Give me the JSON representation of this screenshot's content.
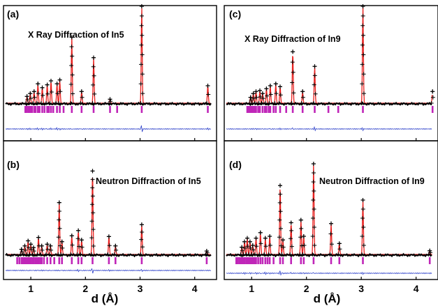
{
  "colors": {
    "observed": "#000000",
    "calculated": "#e8201e",
    "reflection_ticks": "#c026b8",
    "difference": "#2b3fc9",
    "frame": "#000000"
  },
  "chart_data": [
    {
      "type": "line",
      "panel_label": "(a)",
      "title": "X Ray Diffraction of In5",
      "xlabel": "d (Å)",
      "xlim": [
        0.5,
        4.4
      ],
      "xticks": [
        1,
        2,
        3,
        4
      ],
      "peaks": [
        {
          "d": 0.93,
          "h": 0.07
        },
        {
          "d": 0.99,
          "h": 0.1
        },
        {
          "d": 1.06,
          "h": 0.12
        },
        {
          "d": 1.13,
          "h": 0.2
        },
        {
          "d": 1.21,
          "h": 0.16
        },
        {
          "d": 1.3,
          "h": 0.19
        },
        {
          "d": 1.37,
          "h": 0.23
        },
        {
          "d": 1.48,
          "h": 0.2
        },
        {
          "d": 1.53,
          "h": 0.24
        },
        {
          "d": 1.75,
          "h": 0.68
        },
        {
          "d": 1.93,
          "h": 0.12
        },
        {
          "d": 2.15,
          "h": 0.47
        },
        {
          "d": 2.45,
          "h": 0.04
        },
        {
          "d": 3.03,
          "h": 1.0
        },
        {
          "d": 4.24,
          "h": 0.18
        }
      ],
      "reflections": [
        0.9,
        0.93,
        0.96,
        0.99,
        1.02,
        1.06,
        1.09,
        1.13,
        1.16,
        1.21,
        1.25,
        1.3,
        1.33,
        1.37,
        1.41,
        1.48,
        1.53,
        1.6,
        1.75,
        1.93,
        2.15,
        2.45,
        2.58,
        3.03,
        4.24
      ]
    },
    {
      "type": "line",
      "panel_label": "(b)",
      "title": "Neutron Diffraction of In5",
      "xlabel": "d (Å)",
      "xlim": [
        0.5,
        4.4
      ],
      "xticks": [
        1,
        2,
        3,
        4
      ],
      "peaks": [
        {
          "d": 0.83,
          "h": 0.06
        },
        {
          "d": 0.89,
          "h": 0.1
        },
        {
          "d": 0.95,
          "h": 0.16
        },
        {
          "d": 1.0,
          "h": 0.12
        },
        {
          "d": 1.05,
          "h": 0.08
        },
        {
          "d": 1.14,
          "h": 0.2
        },
        {
          "d": 1.2,
          "h": 0.1
        },
        {
          "d": 1.3,
          "h": 0.12
        },
        {
          "d": 1.36,
          "h": 0.1
        },
        {
          "d": 1.52,
          "h": 0.61
        },
        {
          "d": 1.57,
          "h": 0.15
        },
        {
          "d": 1.75,
          "h": 0.22
        },
        {
          "d": 1.87,
          "h": 0.28
        },
        {
          "d": 1.93,
          "h": 0.17
        },
        {
          "d": 2.13,
          "h": 0.98
        },
        {
          "d": 2.43,
          "h": 0.21
        },
        {
          "d": 2.55,
          "h": 0.1
        },
        {
          "d": 3.03,
          "h": 0.35
        },
        {
          "d": 4.22,
          "h": 0.04
        }
      ],
      "reflections": [
        0.75,
        0.79,
        0.83,
        0.86,
        0.89,
        0.92,
        0.95,
        0.98,
        1.0,
        1.03,
        1.05,
        1.08,
        1.11,
        1.14,
        1.17,
        1.2,
        1.24,
        1.3,
        1.36,
        1.43,
        1.52,
        1.57,
        1.75,
        1.87,
        1.93,
        2.13,
        2.43,
        2.55,
        3.03,
        4.22
      ]
    },
    {
      "type": "line",
      "panel_label": "(c)",
      "title": "X Ray Diffraction of In9",
      "xlabel": "d (Å)",
      "xlim": [
        0.5,
        4.4
      ],
      "xticks": [
        1,
        2,
        3,
        4
      ],
      "peaks": [
        {
          "d": 0.98,
          "h": 0.06
        },
        {
          "d": 1.03,
          "h": 0.1
        },
        {
          "d": 1.08,
          "h": 0.12
        },
        {
          "d": 1.15,
          "h": 0.13
        },
        {
          "d": 1.2,
          "h": 0.1
        },
        {
          "d": 1.27,
          "h": 0.15
        },
        {
          "d": 1.34,
          "h": 0.18
        },
        {
          "d": 1.44,
          "h": 0.2
        },
        {
          "d": 1.52,
          "h": 0.17
        },
        {
          "d": 1.75,
          "h": 0.53
        },
        {
          "d": 1.93,
          "h": 0.12
        },
        {
          "d": 2.15,
          "h": 0.38
        },
        {
          "d": 3.03,
          "h": 1.0
        },
        {
          "d": 4.3,
          "h": 0.12
        }
      ],
      "reflections": [
        0.92,
        0.95,
        0.98,
        1.01,
        1.03,
        1.06,
        1.08,
        1.12,
        1.15,
        1.2,
        1.24,
        1.27,
        1.31,
        1.34,
        1.4,
        1.44,
        1.52,
        1.63,
        1.75,
        1.93,
        2.15,
        2.4,
        2.58,
        3.03,
        4.3
      ]
    },
    {
      "type": "line",
      "panel_label": "(d)",
      "title": "Neutron Diffraction of In9",
      "xlabel": "d (Å)",
      "xlim": [
        0.5,
        4.4
      ],
      "xticks": [
        1,
        2,
        3,
        4
      ],
      "peaks": [
        {
          "d": 0.82,
          "h": 0.08
        },
        {
          "d": 0.87,
          "h": 0.14
        },
        {
          "d": 0.92,
          "h": 0.18
        },
        {
          "d": 0.97,
          "h": 0.14
        },
        {
          "d": 1.02,
          "h": 0.1
        },
        {
          "d": 1.08,
          "h": 0.18
        },
        {
          "d": 1.16,
          "h": 0.24
        },
        {
          "d": 1.25,
          "h": 0.18
        },
        {
          "d": 1.33,
          "h": 0.2
        },
        {
          "d": 1.52,
          "h": 0.76
        },
        {
          "d": 1.57,
          "h": 0.16
        },
        {
          "d": 1.72,
          "h": 0.35
        },
        {
          "d": 1.9,
          "h": 0.38
        },
        {
          "d": 1.95,
          "h": 0.2
        },
        {
          "d": 2.13,
          "h": 1.0
        },
        {
          "d": 2.45,
          "h": 0.34
        },
        {
          "d": 2.6,
          "h": 0.12
        },
        {
          "d": 3.03,
          "h": 0.6
        },
        {
          "d": 4.25,
          "h": 0.04
        }
      ],
      "reflections": [
        0.72,
        0.75,
        0.78,
        0.81,
        0.84,
        0.87,
        0.9,
        0.92,
        0.95,
        0.97,
        1.0,
        1.02,
        1.05,
        1.08,
        1.12,
        1.16,
        1.2,
        1.25,
        1.29,
        1.33,
        1.4,
        1.52,
        1.57,
        1.72,
        1.9,
        1.95,
        2.13,
        2.45,
        2.6,
        3.03,
        4.25
      ]
    }
  ]
}
